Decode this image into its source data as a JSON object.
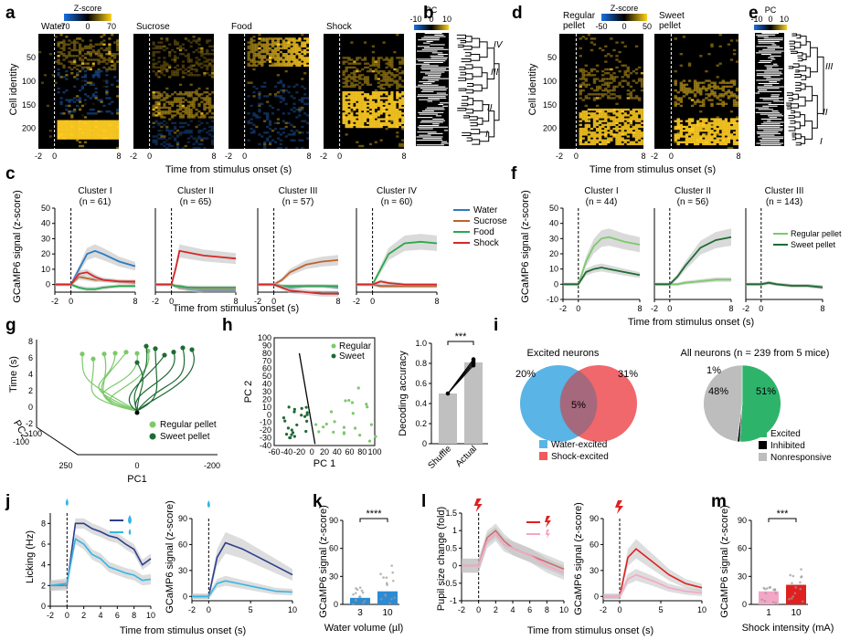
{
  "colors": {
    "water": "#2b7bc0",
    "sucrose": "#c0622a",
    "food": "#2aa84a",
    "shock": "#d62728",
    "regular": "#7cc96a",
    "sweet": "#1e6b33",
    "excited": "#2eb36b",
    "inhibited": "#000000",
    "nonresponsive": "#bdbdbd",
    "water_venn": "#5ab4e5",
    "shock_venn": "#ef5a5f",
    "navy": "#2c3e8c",
    "lightblue": "#35b5e5",
    "pink": "#f4a6c6",
    "red": "#e02020"
  },
  "panel_a": {
    "letter": "a",
    "titles": [
      "Water",
      "Sucrose",
      "Food",
      "Shock"
    ],
    "colorbar_title": "Z-score",
    "colorbar_ticks": [
      "-70",
      "0",
      "70"
    ],
    "ylabel": "Cell identity",
    "yticks": [
      "50",
      "100",
      "150",
      "200"
    ],
    "xticks": [
      "-2",
      "0",
      "8"
    ],
    "xlabel": "Time from stimulus onset (s)"
  },
  "panel_b": {
    "letter": "b",
    "pc_label": "PC",
    "pc_ticks": [
      "-10",
      "0",
      "10"
    ],
    "clusters": [
      "IV",
      "III",
      "II",
      "I"
    ]
  },
  "panel_c": {
    "letter": "c",
    "ylabel": "GCaMP6 signal (z-score)",
    "xlabel": "Time from stimulus onset (s)",
    "yticks": [
      "0",
      "10",
      "20",
      "30",
      "40",
      "50"
    ],
    "xticks": [
      "-2",
      "0",
      "8"
    ],
    "clusters": [
      {
        "name": "Cluster I",
        "n": "(n = 61)"
      },
      {
        "name": "Cluster II",
        "n": "(n = 65)"
      },
      {
        "name": "Cluster III",
        "n": "(n = 57)"
      },
      {
        "name": "Cluster IV",
        "n": "(n = 60)"
      }
    ],
    "legend": [
      "Water",
      "Sucrose",
      "Food",
      "Shock"
    ]
  },
  "panel_d": {
    "letter": "d",
    "titles": [
      "Regular\npellet",
      "Sweet\npellet"
    ],
    "title_lines": [
      [
        "Regular",
        "pellet"
      ],
      [
        "Sweet",
        "pellet"
      ]
    ],
    "colorbar_title": "Z-score",
    "colorbar_ticks": [
      "-50",
      "0",
      "50"
    ],
    "ylabel": "Cell identity",
    "yticks": [
      "50",
      "100",
      "150",
      "200"
    ],
    "xticks": [
      "-2",
      "0",
      "8"
    ],
    "xlabel": "Time from stimulus onset (s)"
  },
  "panel_e": {
    "letter": "e",
    "pc_label": "PC",
    "pc_ticks": [
      "-10",
      "0",
      "10"
    ],
    "clusters": [
      "III",
      "II",
      "I"
    ]
  },
  "panel_f": {
    "letter": "f",
    "ylabel": "GCaMP6 signal (z-score)",
    "xlabel": "Time from stimulus onset (s)",
    "yticks": [
      "-10",
      "0",
      "10",
      "20",
      "30",
      "40",
      "50"
    ],
    "xticks": [
      "-2",
      "0",
      "8"
    ],
    "clusters": [
      {
        "name": "Cluster I",
        "n": "(n = 44)"
      },
      {
        "name": "Cluster II",
        "n": "(n = 56)"
      },
      {
        "name": "Cluster III",
        "n": "(n = 143)"
      }
    ],
    "legend": [
      "Regular pellet",
      "Sweet pellet"
    ]
  },
  "panel_g": {
    "letter": "g",
    "zlabel": "Time (s)",
    "ylabel": "PC2",
    "xlabel": "PC1",
    "zticks": [
      "-2",
      "0",
      "2",
      "4",
      "6",
      "8"
    ],
    "yticks": [
      "-100",
      "0",
      "100"
    ],
    "xticks": [
      "250",
      "0",
      "-200"
    ],
    "legend": [
      "Regular pellet",
      "Sweet pellet"
    ]
  },
  "panel_h": {
    "letter": "h",
    "xlabel": "PC 1",
    "ylabel": "PC 2",
    "xticks": [
      "-60",
      "-40",
      "-20",
      "0",
      "20",
      "40",
      "60",
      "80",
      "100"
    ],
    "yticks": [
      "-40",
      "-30",
      "-20",
      "-10",
      "0",
      "10",
      "20",
      "30",
      "40",
      "50",
      "60",
      "70",
      "80",
      "90",
      "100"
    ],
    "legend": [
      "Regular",
      "Sweet"
    ],
    "bar_ylabel": "Decoding accuracy",
    "bar_yticks": [
      "0",
      "0.2",
      "0.4",
      "0.6",
      "0.8",
      "1.0"
    ],
    "bar_categories": [
      "Shuffle",
      "Actual"
    ],
    "significance": "***"
  },
  "panel_i": {
    "letter": "i",
    "venn_title": "Excited neurons",
    "venn_left_pct": "20%",
    "venn_right_pct": "31%",
    "venn_overlap_pct": "5%",
    "venn_legend": [
      "Water-excited",
      "Shock-excited"
    ],
    "pie_title": "All neurons (n = 239 from 5 mice)",
    "pie_labels": [
      "51%",
      "1%",
      "48%"
    ],
    "pie_legend": [
      "Excited",
      "Inhibited",
      "Nonresponsive"
    ]
  },
  "panel_j": {
    "letter": "j",
    "lick_ylabel": "Licking (Hz)",
    "lick_yticks": [
      "0",
      "2",
      "4",
      "6",
      "8"
    ],
    "gcamp_ylabel": "GCaMP6 signal (z-score)",
    "gcamp_yticks": [
      "0",
      "30",
      "60",
      "90"
    ],
    "xticks": [
      "-2",
      "0",
      "2",
      "4",
      "6",
      "8",
      "10"
    ],
    "xticks_short": [
      "-2",
      "0",
      "5",
      "10"
    ],
    "xlabel": "Time from stimulus onset (s)"
  },
  "panel_k": {
    "letter": "k",
    "ylabel": "GCaMP6 signal (z-score)",
    "yticks": [
      "0",
      "30",
      "60",
      "90"
    ],
    "xlabel": "Water volume (µl)",
    "categories": [
      "3",
      "10"
    ],
    "significance": "****"
  },
  "panel_l": {
    "letter": "l",
    "pupil_ylabel": "Pupil size change (fold)",
    "pupil_yticks": [
      "-1",
      "-0.5",
      "0",
      "0.5",
      "1",
      "1.5"
    ],
    "gcamp_ylabel": "GCaMP6 signal (z-score)",
    "gcamp_yticks": [
      "0",
      "30",
      "60",
      "90"
    ],
    "xticks": [
      "-2",
      "0",
      "2",
      "4",
      "6",
      "8",
      "10"
    ],
    "xticks_short": [
      "-2",
      "0",
      "5",
      "10"
    ],
    "xlabel": "Time from stimulus onset (s)"
  },
  "panel_m": {
    "letter": "m",
    "ylabel": "GCaMP6 signal (z-score)",
    "yticks": [
      "0",
      "30",
      "60",
      "90"
    ],
    "xlabel": "Shock intensity (mA)",
    "categories": [
      "1",
      "10"
    ],
    "significance": "***"
  },
  "chart_data": [
    {
      "type": "heatmap",
      "panel": "a",
      "title": "Water",
      "xlim": [
        -2,
        8
      ],
      "ylim": [
        1,
        243
      ],
      "clim": [
        -70,
        70
      ]
    },
    {
      "type": "heatmap",
      "panel": "a",
      "title": "Sucrose",
      "xlim": [
        -2,
        8
      ],
      "ylim": [
        1,
        243
      ],
      "clim": [
        -70,
        70
      ]
    },
    {
      "type": "heatmap",
      "panel": "a",
      "title": "Food",
      "xlim": [
        -2,
        8
      ],
      "ylim": [
        1,
        243
      ],
      "clim": [
        -70,
        70
      ]
    },
    {
      "type": "heatmap",
      "panel": "a",
      "title": "Shock",
      "xlim": [
        -2,
        8
      ],
      "ylim": [
        1,
        243
      ],
      "clim": [
        -70,
        70
      ]
    },
    {
      "type": "line",
      "panel": "c",
      "title": "Cluster I",
      "x": [
        -2,
        0,
        1,
        2,
        3,
        4,
        6,
        8
      ],
      "ylim": [
        -5,
        50
      ],
      "series": [
        {
          "name": "Water",
          "values": [
            0,
            0,
            10,
            20,
            22,
            20,
            15,
            12
          ]
        },
        {
          "name": "Sucrose",
          "values": [
            0,
            0,
            5,
            4,
            3,
            3,
            2,
            1
          ]
        },
        {
          "name": "Food",
          "values": [
            0,
            0,
            -2,
            -3,
            -3,
            -2,
            -1,
            -1
          ]
        },
        {
          "name": "Shock",
          "values": [
            0,
            0,
            7,
            8,
            5,
            3,
            2,
            2
          ]
        }
      ]
    },
    {
      "type": "line",
      "panel": "c",
      "title": "Cluster II",
      "x": [
        -2,
        0,
        0.5,
        1,
        2,
        4,
        6,
        8
      ],
      "ylim": [
        -5,
        50
      ],
      "series": [
        {
          "name": "Water",
          "values": [
            0,
            0,
            -1,
            -2,
            -3,
            -4,
            -4,
            -4
          ]
        },
        {
          "name": "Sucrose",
          "values": [
            0,
            0,
            -1,
            -2,
            -2,
            -3,
            -3,
            -3
          ]
        },
        {
          "name": "Food",
          "values": [
            0,
            0,
            -1,
            -1,
            -2,
            -2,
            -2,
            -2
          ]
        },
        {
          "name": "Shock",
          "values": [
            0,
            0,
            10,
            22,
            21,
            19,
            18,
            17
          ]
        }
      ]
    },
    {
      "type": "line",
      "panel": "c",
      "title": "Cluster III",
      "x": [
        -2,
        0,
        1,
        2,
        4,
        6,
        8
      ],
      "ylim": [
        -5,
        50
      ],
      "series": [
        {
          "name": "Water",
          "values": [
            0,
            0,
            -1,
            -2,
            -1,
            -1,
            -2
          ]
        },
        {
          "name": "Sucrose",
          "values": [
            0,
            0,
            3,
            8,
            13,
            15,
            16
          ]
        },
        {
          "name": "Food",
          "values": [
            0,
            0,
            -1,
            -1,
            -1,
            -1,
            -1
          ]
        },
        {
          "name": "Shock",
          "values": [
            0,
            0,
            -2,
            -4,
            -5,
            -6,
            -6
          ]
        }
      ]
    },
    {
      "type": "line",
      "panel": "c",
      "title": "Cluster IV",
      "x": [
        -2,
        0,
        1,
        2,
        4,
        6,
        8
      ],
      "ylim": [
        -5,
        50
      ],
      "series": [
        {
          "name": "Water",
          "values": [
            0,
            0,
            -1,
            -1,
            -1,
            -1,
            -1
          ]
        },
        {
          "name": "Sucrose",
          "values": [
            0,
            0,
            -1,
            -1,
            -1,
            -1,
            -1
          ]
        },
        {
          "name": "Food",
          "values": [
            0,
            0,
            10,
            20,
            27,
            28,
            27
          ]
        },
        {
          "name": "Shock",
          "values": [
            0,
            0,
            2,
            1,
            0,
            0,
            0
          ]
        }
      ]
    },
    {
      "type": "line",
      "panel": "f",
      "title": "Cluster I",
      "x": [
        -2,
        0,
        1,
        2,
        3,
        4,
        6,
        8
      ],
      "ylim": [
        -10,
        50
      ],
      "series": [
        {
          "name": "Regular pellet",
          "values": [
            0,
            0,
            15,
            25,
            30,
            31,
            28,
            26
          ]
        },
        {
          "name": "Sweet pellet",
          "values": [
            0,
            0,
            8,
            10,
            11,
            10,
            8,
            6
          ]
        }
      ]
    },
    {
      "type": "line",
      "panel": "f",
      "title": "Cluster II",
      "x": [
        -2,
        0,
        1,
        2,
        4,
        6,
        8
      ],
      "ylim": [
        -10,
        50
      ],
      "series": [
        {
          "name": "Regular pellet",
          "values": [
            0,
            0,
            0,
            1,
            2,
            3,
            3
          ]
        },
        {
          "name": "Sweet pellet",
          "values": [
            0,
            0,
            5,
            12,
            24,
            29,
            31
          ]
        }
      ]
    },
    {
      "type": "line",
      "panel": "f",
      "title": "Cluster III",
      "x": [
        -2,
        0,
        1,
        2,
        4,
        6,
        8
      ],
      "ylim": [
        -10,
        50
      ],
      "series": [
        {
          "name": "Regular pellet",
          "values": [
            0,
            0,
            1,
            0,
            -1,
            -1,
            -2
          ]
        },
        {
          "name": "Sweet pellet",
          "values": [
            0,
            0,
            1,
            0,
            -1,
            -1,
            -2
          ]
        }
      ]
    },
    {
      "type": "bar",
      "panel": "h",
      "categories": [
        "Shuffle",
        "Actual"
      ],
      "values": [
        0.5,
        0.81
      ],
      "ylim": [
        0,
        1.0
      ],
      "ylabel": "Decoding accuracy"
    },
    {
      "type": "pie",
      "panel": "i",
      "title": "All neurons (n = 239 from 5 mice)",
      "categories": [
        "Excited",
        "Inhibited",
        "Nonresponsive"
      ],
      "values": [
        51,
        1,
        48
      ]
    },
    {
      "type": "line",
      "panel": "j",
      "ylabel": "Licking (Hz)",
      "x": [
        -2,
        0,
        1,
        2,
        3,
        4,
        5,
        6,
        7,
        8,
        9,
        10
      ],
      "ylim": [
        0,
        9
      ],
      "series": [
        {
          "values": [
            2.0,
            2.0,
            8.0,
            8.0,
            7.5,
            7.2,
            6.8,
            6.6,
            6.0,
            5.5,
            4.0,
            4.6
          ]
        },
        {
          "values": [
            2.0,
            2.2,
            6.5,
            6.0,
            5.0,
            4.6,
            3.8,
            3.5,
            3.2,
            3.0,
            2.5,
            2.6
          ]
        }
      ]
    },
    {
      "type": "line",
      "panel": "j",
      "ylabel": "GCaMP6 signal (z-score)",
      "x": [
        -2,
        0,
        1,
        2,
        4,
        6,
        8,
        10
      ],
      "ylim": [
        -5,
        90
      ],
      "series": [
        {
          "values": [
            0,
            0,
            45,
            62,
            55,
            45,
            35,
            25
          ]
        },
        {
          "values": [
            0,
            0,
            15,
            18,
            14,
            10,
            6,
            5
          ]
        }
      ]
    },
    {
      "type": "bar",
      "panel": "k",
      "categories": [
        "3",
        "10"
      ],
      "values": [
        7,
        14
      ],
      "ylim": [
        0,
        90
      ],
      "ylabel": "GCaMP6 signal (z-score)",
      "xlabel": "Water volume (µl)"
    },
    {
      "type": "line",
      "panel": "l",
      "ylabel": "Pupil size change (fold)",
      "x": [
        -2,
        0,
        1,
        2,
        3,
        4,
        6,
        8,
        10
      ],
      "ylim": [
        -1,
        1.5
      ],
      "series": [
        {
          "values": [
            0,
            0,
            0.8,
            1.0,
            0.7,
            0.5,
            0.3,
            0.1,
            -0.1
          ]
        },
        {
          "values": [
            0,
            0,
            0.7,
            0.9,
            0.6,
            0.5,
            0.3,
            0.0,
            -0.2
          ]
        }
      ]
    },
    {
      "type": "line",
      "panel": "l",
      "ylabel": "GCaMP6 signal (z-score)",
      "x": [
        -2,
        0,
        1,
        2,
        4,
        6,
        8,
        10
      ],
      "ylim": [
        -5,
        90
      ],
      "series": [
        {
          "values": [
            0,
            0,
            45,
            55,
            40,
            25,
            15,
            10
          ]
        },
        {
          "values": [
            0,
            0,
            20,
            25,
            18,
            10,
            6,
            4
          ]
        }
      ]
    },
    {
      "type": "bar",
      "panel": "m",
      "categories": [
        "1",
        "10"
      ],
      "values": [
        14,
        21
      ],
      "ylim": [
        0,
        90
      ],
      "ylabel": "GCaMP6 signal (z-score)",
      "xlabel": "Shock intensity (mA)"
    }
  ]
}
